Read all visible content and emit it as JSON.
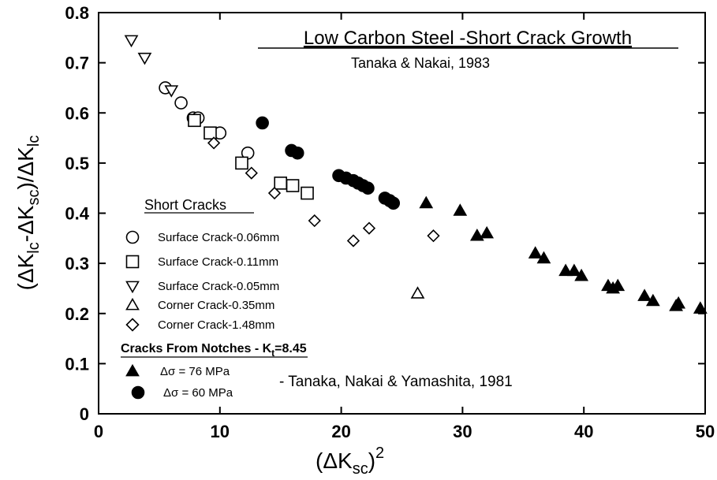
{
  "chart_data": {
    "type": "scatter",
    "title": "Low Carbon Steel -Short Crack Growth",
    "subtitle": "Tanaka & Nakai, 1983",
    "xlabel_base": "(ΔK",
    "xlabel_sub": "sc",
    "xlabel_end": ")",
    "xlabel_sup": "2",
    "ylabel_a": "(ΔK",
    "ylabel_a_sub": "lc",
    "ylabel_b": "-ΔK",
    "ylabel_b_sub": "sc",
    "ylabel_c": ")/ΔK",
    "ylabel_c_sub": "lc",
    "xlim": [
      0,
      50
    ],
    "ylim": [
      0,
      0.8
    ],
    "x_ticks": [
      "0",
      "10",
      "20",
      "30",
      "40",
      "50"
    ],
    "y_ticks": [
      "0",
      "0.1",
      "0.2",
      "0.3",
      "0.4",
      "0.5",
      "0.6",
      "0.7",
      "0.8"
    ],
    "legend_group1_title": "Short Cracks",
    "legend_group2_title": "Cracks From Notches - K",
    "legend_group2_sub": "t",
    "legend_group2_end": "=8.45",
    "note": "- Tanaka, Nakai & Yamashita, 1981",
    "series": [
      {
        "name": "Surface Crack-0.06mm",
        "marker": "circle-open",
        "x": [
          5.5,
          6.8,
          7.8,
          8.2,
          10.0,
          12.3
        ],
        "y": [
          0.65,
          0.62,
          0.59,
          0.59,
          0.56,
          0.52
        ]
      },
      {
        "name": "Surface Crack-0.11mm",
        "marker": "square-open",
        "x": [
          7.9,
          9.2,
          11.8,
          15.0,
          16.0,
          17.2
        ],
        "y": [
          0.585,
          0.56,
          0.5,
          0.46,
          0.455,
          0.44
        ]
      },
      {
        "name": "Surface Crack-0.05mm",
        "marker": "triangle-down-open",
        "x": [
          2.7,
          3.8,
          6.0
        ],
        "y": [
          0.745,
          0.71,
          0.645
        ]
      },
      {
        "name": "Corner Crack-0.35mm",
        "marker": "triangle-up-open",
        "x": [
          26.3
        ],
        "y": [
          0.24
        ]
      },
      {
        "name": "Corner Crack-1.48mm",
        "marker": "diamond-open",
        "x": [
          9.5,
          12.6,
          14.5,
          17.8,
          21.0,
          22.3,
          27.6
        ],
        "y": [
          0.54,
          0.48,
          0.44,
          0.385,
          0.345,
          0.37,
          0.355
        ]
      },
      {
        "name": "Δσ = 76 MPa",
        "marker": "triangle-up-filled",
        "x": [
          27.0,
          29.8,
          31.2,
          32.0,
          36.0,
          36.7,
          38.5,
          39.2,
          39.8,
          42.0,
          42.4,
          42.8,
          45.0,
          45.7,
          47.6,
          47.8,
          49.6
        ],
        "y": [
          0.42,
          0.405,
          0.355,
          0.36,
          0.32,
          0.31,
          0.285,
          0.285,
          0.275,
          0.255,
          0.25,
          0.255,
          0.235,
          0.225,
          0.215,
          0.22,
          0.21
        ]
      },
      {
        "name": "Δσ = 60 MPa",
        "marker": "circle-filled",
        "x": [
          13.5,
          15.9,
          16.4,
          19.8,
          20.4,
          21.0,
          21.4,
          21.8,
          22.2,
          23.6,
          24.0,
          24.3
        ],
        "y": [
          0.58,
          0.525,
          0.52,
          0.475,
          0.47,
          0.465,
          0.46,
          0.455,
          0.45,
          0.43,
          0.425,
          0.42
        ]
      }
    ]
  }
}
